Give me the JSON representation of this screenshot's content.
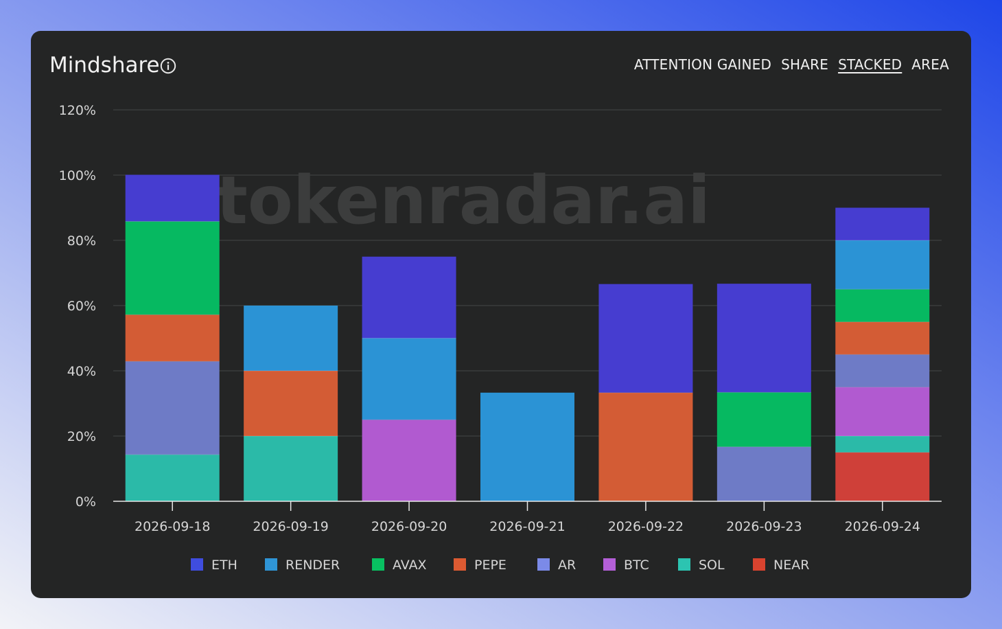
{
  "header": {
    "title": "Mindshare",
    "tabs": [
      {
        "label": "ATTENTION GAINED",
        "active": false
      },
      {
        "label": "SHARE",
        "active": false
      },
      {
        "label": "STACKED",
        "active": true
      },
      {
        "label": "AREA",
        "active": false
      }
    ]
  },
  "watermark": "tokenradar.ai",
  "icons": {
    "info": "info-icon"
  },
  "chart_data": {
    "type": "bar",
    "stacked": true,
    "categories": [
      "2026-09-18",
      "2026-09-19",
      "2026-09-20",
      "2026-09-21",
      "2026-09-22",
      "2026-09-23",
      "2026-09-24"
    ],
    "ylim": [
      0,
      120
    ],
    "yticks": [
      0,
      20,
      40,
      60,
      80,
      100,
      120
    ],
    "yticks_labels": [
      "0%",
      "20%",
      "40%",
      "60%",
      "80%",
      "100%",
      "120%"
    ],
    "grid": true,
    "legend_position": "bottom",
    "legend": [
      {
        "name": "ETH",
        "color": "#3f4ddf"
      },
      {
        "name": "RENDER",
        "color": "#2f95d6"
      },
      {
        "name": "AVAX",
        "color": "#08c061"
      },
      {
        "name": "PEPE",
        "color": "#dc5a32"
      },
      {
        "name": "AR",
        "color": "#7b8ae8"
      },
      {
        "name": "BTC",
        "color": "#b45fd8"
      },
      {
        "name": "SOL",
        "color": "#2cc4b1"
      },
      {
        "name": "NEAR",
        "color": "#d9432f"
      }
    ],
    "stack_order": [
      "NEAR",
      "SOL",
      "BTC",
      "AR",
      "PEPE",
      "AVAX",
      "RENDER",
      "ETH"
    ],
    "series": [
      {
        "name": "NEAR",
        "fill": "#cf4039",
        "values": [
          0,
          0,
          0,
          0,
          0,
          0,
          15
        ]
      },
      {
        "name": "SOL",
        "fill": "#2bbaa8",
        "values": [
          14.3,
          20,
          0,
          0,
          0,
          0,
          5
        ]
      },
      {
        "name": "BTC",
        "fill": "#b15ad0",
        "values": [
          0,
          0,
          25,
          0,
          0,
          0,
          15
        ]
      },
      {
        "name": "AR",
        "fill": "#6e7bc6",
        "values": [
          28.6,
          0,
          0,
          0,
          0,
          16.7,
          10
        ]
      },
      {
        "name": "PEPE",
        "fill": "#d35c35",
        "values": [
          14.3,
          20,
          0,
          0,
          33.3,
          0,
          10
        ]
      },
      {
        "name": "AVAX",
        "fill": "#06b961",
        "values": [
          28.6,
          0,
          0,
          0,
          0,
          16.7,
          10
        ]
      },
      {
        "name": "RENDER",
        "fill": "#2b93d5",
        "values": [
          0,
          20,
          25,
          33.3,
          0,
          0,
          15
        ]
      },
      {
        "name": "ETH",
        "fill": "#463dd0",
        "values": [
          14.3,
          0,
          25,
          0,
          33.3,
          33.3,
          10
        ]
      }
    ]
  }
}
